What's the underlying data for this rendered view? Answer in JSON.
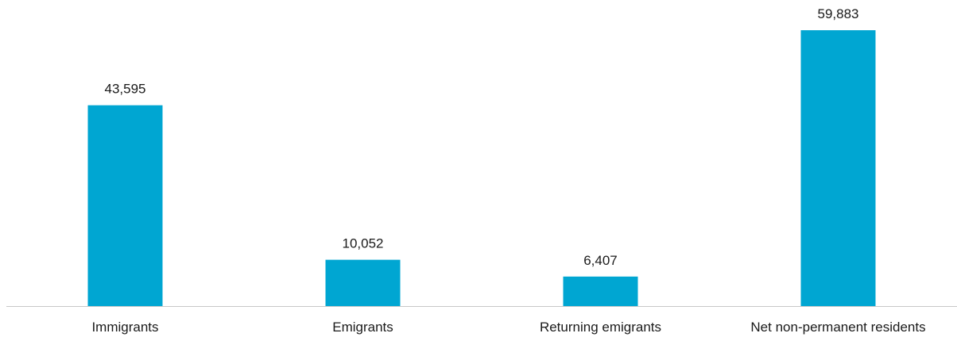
{
  "chart_data": {
    "type": "bar",
    "title": "",
    "xlabel": "",
    "ylabel": "",
    "categories": [
      "Immigrants",
      "Emigrants",
      "Returning emigrants",
      "Net non-permanent residents"
    ],
    "values": [
      43595,
      10052,
      6407,
      59883
    ],
    "value_labels": [
      "43,595",
      "10,052",
      "6,407",
      "59,883"
    ],
    "ylim": [
      0,
      63000
    ],
    "grid": false,
    "legend": "none",
    "bar_color": "#00a6d2",
    "axis_color": "#c8c8c8"
  }
}
